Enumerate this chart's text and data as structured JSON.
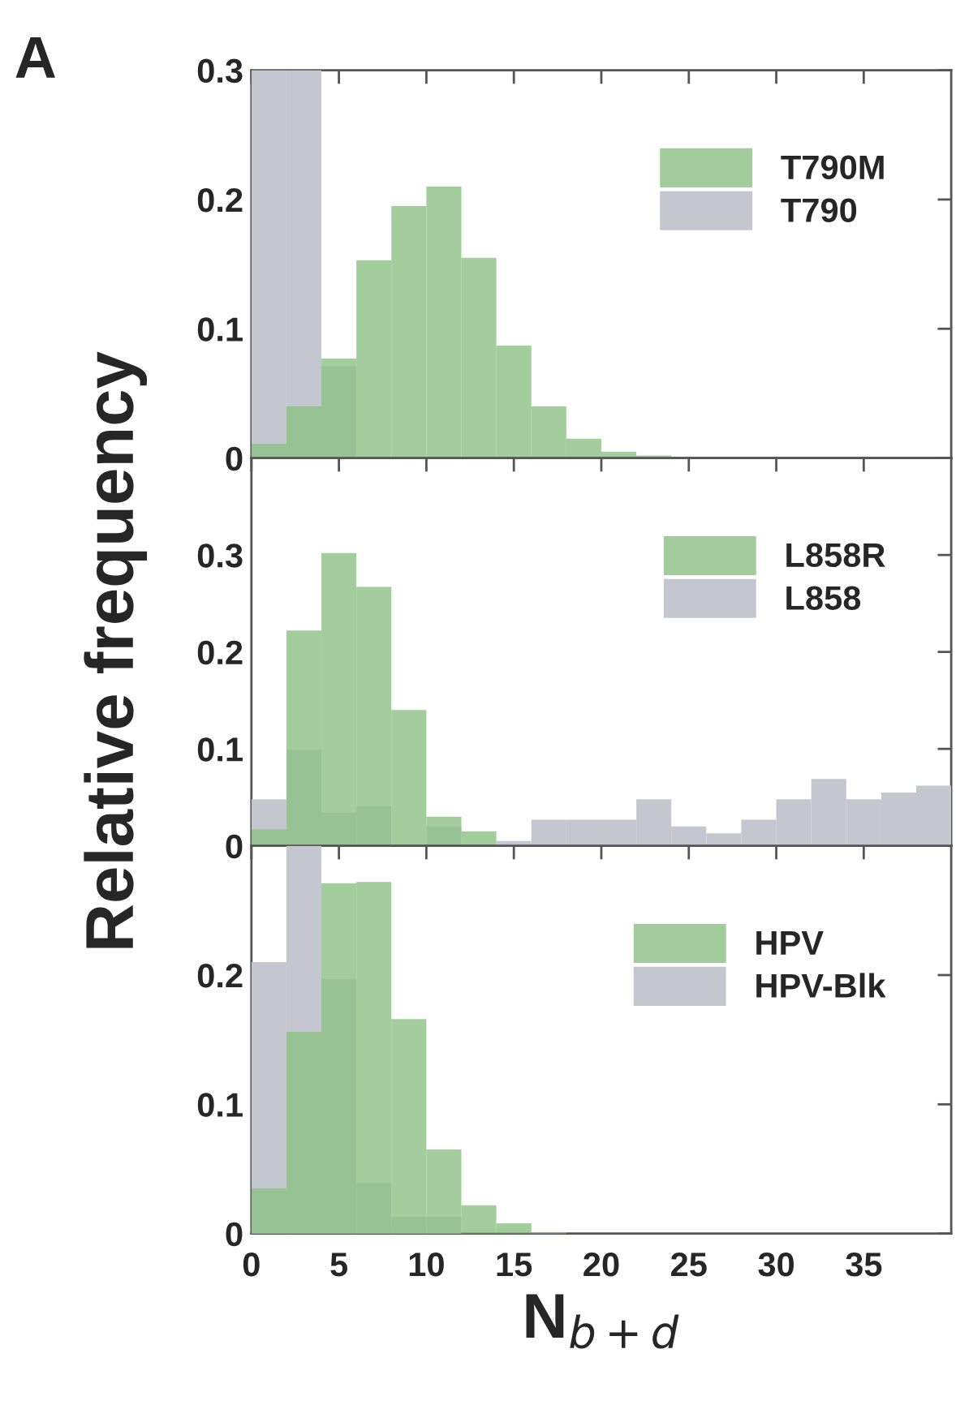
{
  "chart_data": [
    {
      "type": "histogram",
      "annotations": [
        "A"
      ],
      "bins": [
        0,
        2,
        4,
        6,
        8,
        10,
        12,
        14,
        16,
        18,
        20,
        22,
        24,
        26,
        28,
        30,
        32,
        34,
        36,
        38,
        40
      ],
      "series": [
        {
          "name": "T790M",
          "color": "#8cc084",
          "values": [
            0.011,
            0.04,
            0.077,
            0.153,
            0.195,
            0.21,
            0.155,
            0.087,
            0.04,
            0.015,
            0.005,
            0.002,
            null,
            0,
            0,
            0,
            0,
            0,
            0,
            0
          ]
        },
        {
          "name": "T790",
          "color": "#c4c7d0",
          "values": [
            0.3,
            0.3,
            0.071,
            0,
            0,
            0,
            0,
            0,
            0,
            0,
            0,
            0,
            0,
            0,
            0,
            0,
            0,
            0,
            0,
            0
          ]
        }
      ],
      "xlim": [
        0,
        40
      ],
      "xticks": [
        0,
        5,
        10,
        15,
        20,
        25,
        30,
        35
      ],
      "ylim": [
        0,
        0.3
      ],
      "yticks": [
        0,
        0.1,
        0.2,
        0.3
      ],
      "tick_labels": "y",
      "legend": "top right"
    },
    {
      "type": "histogram",
      "ylabel": "Relative frequency",
      "bins": [
        0,
        2,
        4,
        6,
        8,
        10,
        12,
        14,
        16,
        18,
        20,
        22,
        24,
        26,
        28,
        30,
        32,
        34,
        36,
        38,
        40
      ],
      "series": [
        {
          "name": "L858R",
          "color": "#8cc084",
          "values": [
            0.017,
            0.222,
            0.302,
            0.267,
            0.14,
            0.03,
            0.015,
            0,
            0,
            0,
            0,
            0,
            0,
            0,
            0,
            0,
            0,
            0,
            0,
            0
          ]
        },
        {
          "name": "L858",
          "color": "#c4c7d0",
          "values": [
            0.048,
            0.099,
            0.034,
            0.041,
            null,
            0.02,
            null,
            0.005,
            0.027,
            0.027,
            0.027,
            0.048,
            0.02,
            0.013,
            0.027,
            0.048,
            0.069,
            0.048,
            0.055,
            0.062
          ]
        }
      ],
      "xlim": [
        0,
        40
      ],
      "xticks": [
        0,
        5,
        10,
        15,
        20,
        25,
        30,
        35
      ],
      "ylim": [
        0,
        0.4
      ],
      "yticks": [
        0,
        0.1,
        0.2,
        0.3
      ],
      "tick_labels": "y",
      "legend": "top right"
    },
    {
      "type": "histogram",
      "xlabel": "N$_{b+d}$",
      "bins": [
        0,
        2,
        4,
        6,
        8,
        10,
        12,
        14,
        16,
        18,
        20,
        22,
        24,
        26,
        28,
        30,
        32,
        34,
        36,
        38,
        40
      ],
      "series": [
        {
          "name": "HPV",
          "color": "#8cc084",
          "values": [
            0.035,
            0.156,
            0.271,
            0.272,
            0.166,
            0.065,
            0.022,
            0.008,
            0.001,
            0,
            0,
            0,
            0,
            0,
            0,
            0,
            0,
            0,
            0,
            0
          ]
        },
        {
          "name": "HPV-Blk",
          "color": "#c4c7d0",
          "values": [
            0.21,
            0.3,
            0.197,
            0.039,
            0.013,
            0.013,
            0,
            0,
            0,
            0,
            0,
            0,
            0,
            0,
            0,
            0,
            0,
            0,
            0,
            0
          ]
        }
      ],
      "xlim": [
        0,
        40
      ],
      "xticks": [
        0,
        5,
        10,
        15,
        20,
        25,
        30,
        35
      ],
      "ylim": [
        0,
        0.3
      ],
      "yticks": [
        0,
        0.1,
        0.2
      ],
      "legend": "top right"
    }
  ]
}
